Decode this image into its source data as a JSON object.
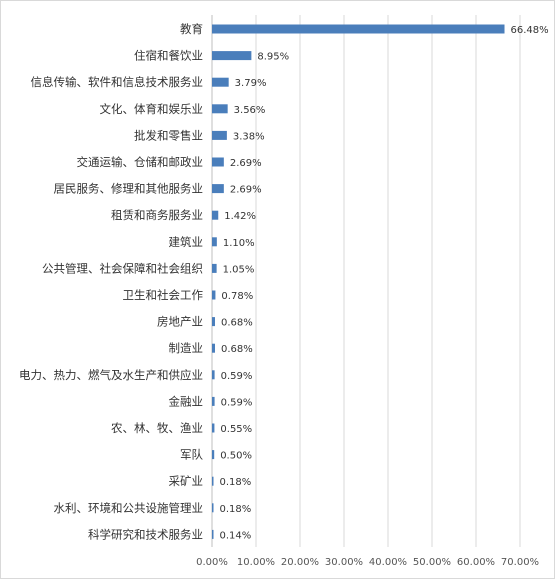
{
  "chart_data": {
    "type": "bar",
    "orientation": "horizontal",
    "categories": [
      "教育",
      "住宿和餐饮业",
      "信息传输、软件和信息技术服务业",
      "文化、体育和娱乐业",
      "批发和零售业",
      "交通运输、仓储和邮政业",
      "居民服务、修理和其他服务业",
      "租赁和商务服务业",
      "建筑业",
      "公共管理、社会保障和社会组织",
      "卫生和社会工作",
      "房地产业",
      "制造业",
      "电力、热力、燃气及水生产和供应业",
      "金融业",
      "农、林、牧、渔业",
      "军队",
      "采矿业",
      "水利、环境和公共设施管理业",
      "科学研究和技术服务业"
    ],
    "values": [
      66.48,
      8.95,
      3.79,
      3.56,
      3.38,
      2.69,
      2.69,
      1.42,
      1.1,
      1.05,
      0.78,
      0.68,
      0.68,
      0.59,
      0.59,
      0.55,
      0.5,
      0.18,
      0.18,
      0.14
    ],
    "value_labels": [
      "66.48%",
      "8.95%",
      "3.79%",
      "3.56%",
      "3.38%",
      "2.69%",
      "2.69%",
      "1.42%",
      "1.10%",
      "1.05%",
      "0.78%",
      "0.68%",
      "0.68%",
      "0.59%",
      "0.59%",
      "0.55%",
      "0.50%",
      "0.18%",
      "0.18%",
      "0.14%"
    ],
    "x_ticks": [
      "0.00%",
      "10.00%",
      "20.00%",
      "30.00%",
      "40.00%",
      "50.00%",
      "60.00%",
      "70.00%"
    ],
    "xlim": [
      0,
      70
    ],
    "title": "",
    "xlabel": "",
    "ylabel": "",
    "grid": true,
    "legend": "none",
    "bar_color": "#4a7ebb",
    "grid_color": "#d9d9d9"
  }
}
